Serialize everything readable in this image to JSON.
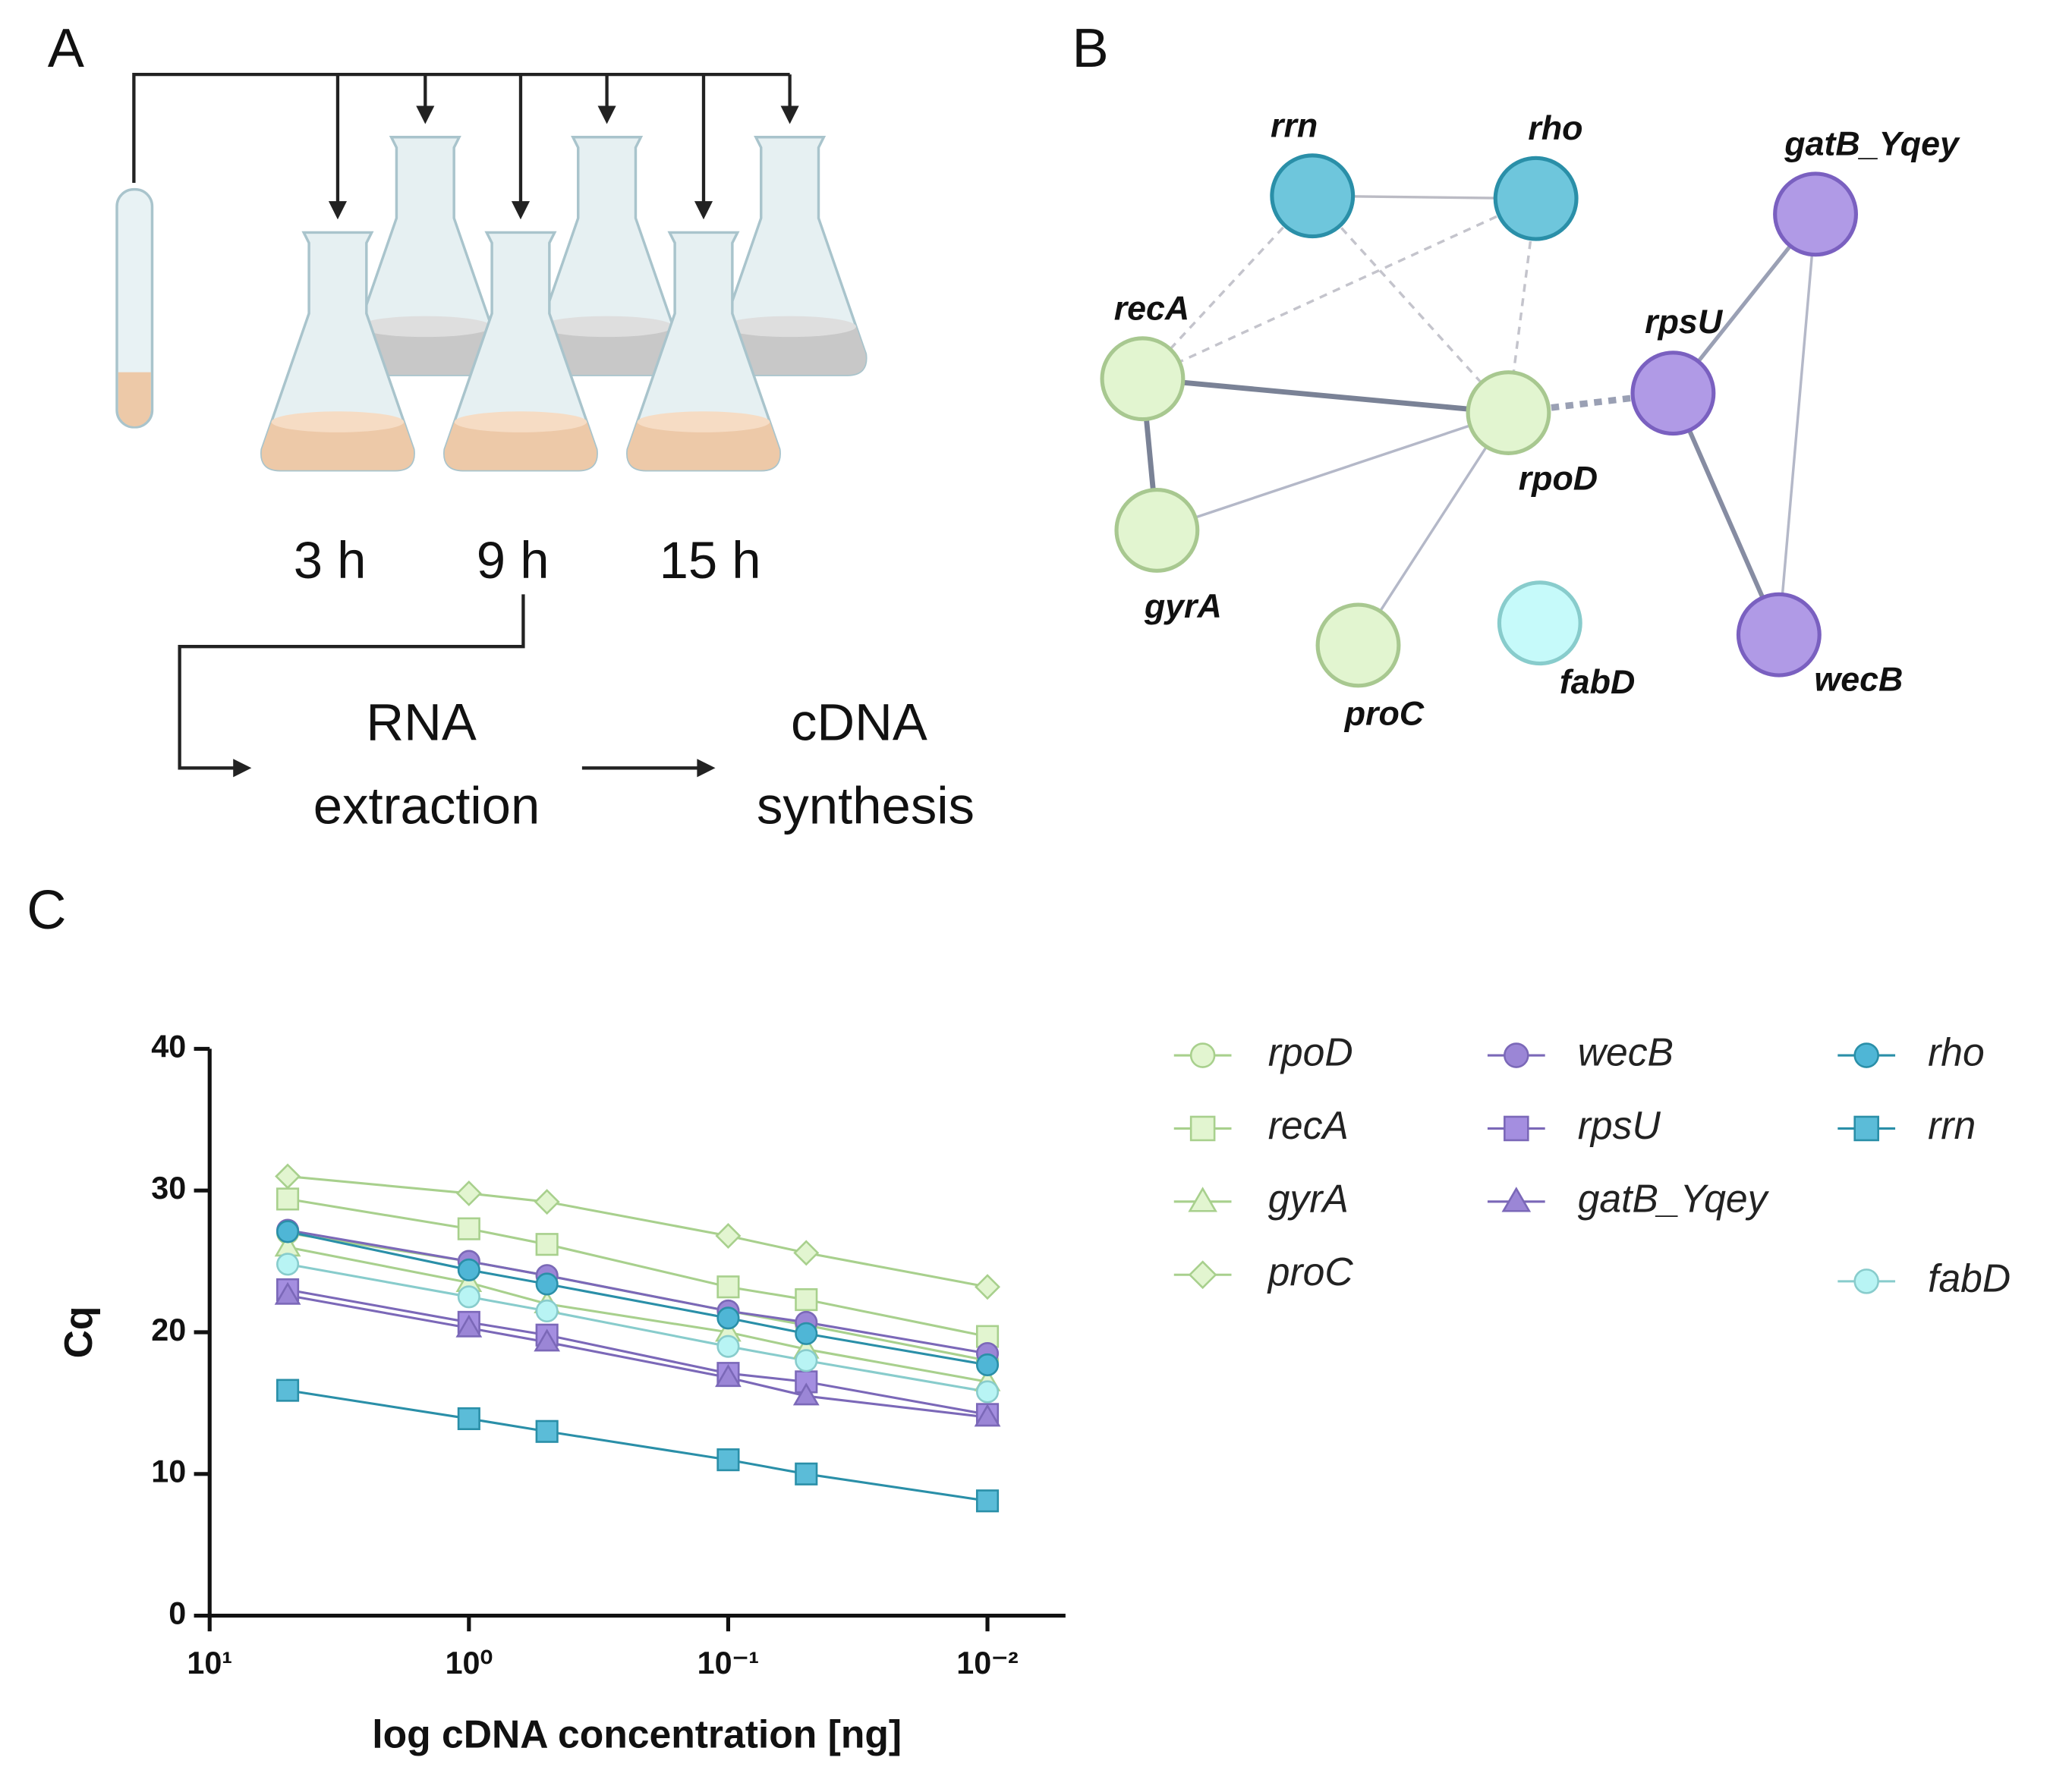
{
  "panel_a": {
    "label": "A",
    "times": [
      "3 h",
      "9 h",
      "15 h"
    ],
    "step1": [
      "RNA",
      "extraction"
    ],
    "step2": [
      "cDNA",
      "synthesis"
    ]
  },
  "panel_b": {
    "label": "B",
    "nodes": [
      {
        "label": "rrn",
        "color": "#6ec6dc",
        "stroke": "#2a8fa8"
      },
      {
        "label": "rho",
        "color": "#6ec6dc",
        "stroke": "#2a8fa8"
      },
      {
        "label": "gatB_Yqey",
        "color": "#b09ae6",
        "stroke": "#7a60c0"
      },
      {
        "label": "recA",
        "color": "#e2f5d0",
        "stroke": "#a8c890"
      },
      {
        "label": "rpoD",
        "color": "#e2f5d0",
        "stroke": "#a8c890"
      },
      {
        "label": "rpsU",
        "color": "#b09ae6",
        "stroke": "#7a60c0"
      },
      {
        "label": "gyrA",
        "color": "#e2f5d0",
        "stroke": "#a8c890"
      },
      {
        "label": "proC",
        "color": "#e2f5d0",
        "stroke": "#a8c890"
      },
      {
        "label": "fabD",
        "color": "#c6fafa",
        "stroke": "#88cccc"
      },
      {
        "label": "wecB",
        "color": "#b09ae6",
        "stroke": "#7a60c0"
      }
    ]
  },
  "chart_data": {
    "type": "line",
    "panel_label": "C",
    "xlabel": "log cDNA concentration [ng]",
    "ylabel": "Cq",
    "x": [
      5,
      1,
      0.5,
      0.1,
      0.05,
      0.01
    ],
    "xscale": "log",
    "xlim": [
      10,
      0.005
    ],
    "xticks": [
      {
        "value": 10,
        "label": "10¹"
      },
      {
        "value": 1,
        "label": "10⁰"
      },
      {
        "value": 0.1,
        "label": "10⁻¹"
      },
      {
        "value": 0.01,
        "label": "10⁻²"
      }
    ],
    "ylim": [
      0,
      40
    ],
    "yticks": [
      0,
      10,
      20,
      30,
      40
    ],
    "series": [
      {
        "name": "rpoD",
        "marker": "circle",
        "color": "#e2f5d0",
        "line_color": "#a8d08d",
        "values": [
          27,
          25,
          24,
          21.5,
          20.5,
          18
        ]
      },
      {
        "name": "recA",
        "marker": "square",
        "color": "#e2f5d0",
        "line_color": "#a8d08d",
        "values": [
          29.4,
          27.3,
          26.2,
          23.2,
          22.3,
          19.7
        ]
      },
      {
        "name": "gyrA",
        "marker": "triangle",
        "color": "#e2f5d0",
        "line_color": "#a8d08d",
        "values": [
          26,
          23.5,
          22,
          20,
          18.8,
          16.5
        ]
      },
      {
        "name": "proC",
        "marker": "diamond",
        "color": "#e2f5d0",
        "line_color": "#a8d08d",
        "values": [
          31,
          29.8,
          29.2,
          26.8,
          25.6,
          23.2
        ]
      },
      {
        "name": "wecB",
        "marker": "circle",
        "color": "#9b86d6",
        "line_color": "#7b68b8",
        "values": [
          27.2,
          25,
          24,
          21.5,
          20.7,
          18.5
        ]
      },
      {
        "name": "rpsU",
        "marker": "square",
        "color": "#a48ee0",
        "line_color": "#7b68b8",
        "values": [
          23,
          20.7,
          19.8,
          17.1,
          16.5,
          14.2
        ]
      },
      {
        "name": "gatB_Yqey",
        "marker": "triangle",
        "color": "#9b86d6",
        "line_color": "#7b68b8",
        "values": [
          22.6,
          20.3,
          19.3,
          16.8,
          15.5,
          14
        ]
      },
      {
        "name": "rho",
        "marker": "circle",
        "color": "#4fb6d6",
        "line_color": "#2a8fa8",
        "values": [
          27.1,
          24.4,
          23.4,
          21,
          19.9,
          17.7
        ]
      },
      {
        "name": "rrn",
        "marker": "square",
        "color": "#5bbcd8",
        "line_color": "#2a8fa8",
        "values": [
          15.9,
          13.9,
          13,
          11,
          10,
          8.1
        ]
      },
      {
        "name": "fabD",
        "marker": "circle",
        "color": "#b8f4f4",
        "line_color": "#88cccc",
        "values": [
          24.8,
          22.5,
          21.5,
          19,
          18,
          15.8
        ]
      }
    ]
  }
}
